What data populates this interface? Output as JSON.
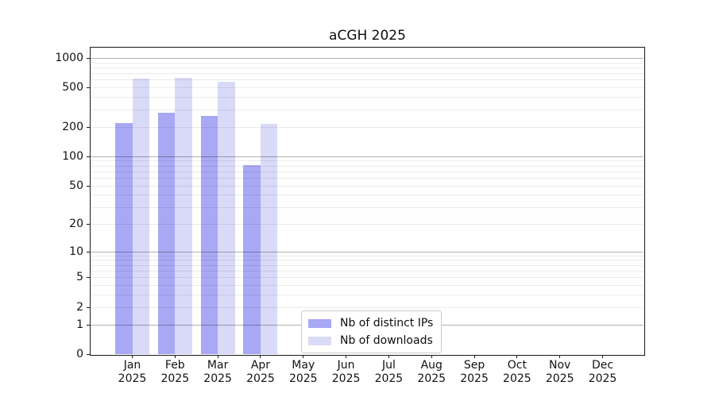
{
  "chart_data": {
    "type": "bar",
    "title": "aCGH 2025",
    "categories": [
      "Jan 2025",
      "Feb 2025",
      "Mar 2025",
      "Apr 2025",
      "May 2025",
      "Jun 2025",
      "Jul 2025",
      "Aug 2025",
      "Sep 2025",
      "Oct 2025",
      "Nov 2025",
      "Dec 2025"
    ],
    "series": [
      {
        "name": "Nb of distinct IPs",
        "color": "#a8a8f4",
        "values": [
          220,
          276,
          256,
          81,
          0,
          0,
          0,
          0,
          0,
          0,
          0,
          0
        ]
      },
      {
        "name": "Nb of downloads",
        "color": "#d9d9f8",
        "values": [
          620,
          625,
          575,
          215,
          0,
          0,
          0,
          0,
          0,
          0,
          0,
          0
        ]
      }
    ],
    "y_ticks": [
      0,
      1,
      2,
      5,
      10,
      20,
      50,
      100,
      200,
      500,
      1000
    ],
    "scale": "log10(1+value)",
    "ylim": [
      0,
      1350
    ],
    "xlabel": "",
    "ylabel": "",
    "grid": "horizontal, minor light + major dark at powers of 10",
    "legend_position": "lower center"
  }
}
